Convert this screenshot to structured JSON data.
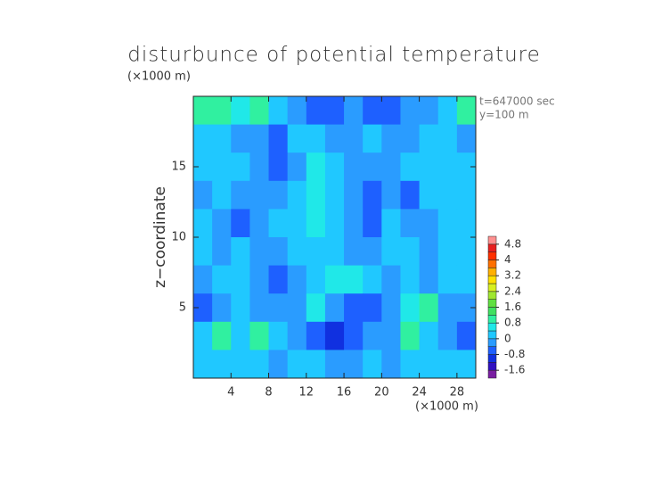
{
  "chart_data": {
    "type": "heatmap",
    "title": "disturbunce of potential temperature",
    "y_unit": "(×1000 m)",
    "x_unit": "(×1000 m)",
    "ylabel": "z−coordinate",
    "annotations": [
      "t=647000 sec",
      "y=100 m"
    ],
    "x": [
      1,
      3,
      5,
      7,
      9,
      11,
      13,
      15,
      17,
      19,
      21,
      23,
      25,
      27,
      29
    ],
    "y": [
      19,
      17,
      15,
      13,
      11,
      9,
      7,
      5,
      3,
      1
    ],
    "z": [
      [
        0.8,
        0.8,
        0.4,
        0.8,
        0,
        -0.4,
        -0.8,
        -0.8,
        -0.4,
        -0.8,
        -0.8,
        -0.4,
        -0.4,
        0,
        0.8
      ],
      [
        0,
        0,
        -0.4,
        -0.4,
        -0.8,
        0,
        0,
        -0.4,
        -0.4,
        0,
        -0.4,
        -0.4,
        0,
        0,
        -0.4
      ],
      [
        0,
        0,
        0,
        -0.4,
        -0.8,
        -0.4,
        0.4,
        0,
        -0.4,
        -0.4,
        -0.4,
        0,
        0,
        0,
        0
      ],
      [
        -0.4,
        0,
        -0.4,
        -0.4,
        -0.4,
        0,
        0.4,
        0,
        -0.4,
        -0.8,
        -0.4,
        -0.8,
        0,
        0,
        0
      ],
      [
        0,
        -0.4,
        -0.8,
        -0.4,
        0,
        0,
        0.4,
        0,
        -0.4,
        -0.8,
        0,
        -0.4,
        -0.4,
        0,
        0
      ],
      [
        0,
        -0.4,
        0,
        -0.4,
        -0.4,
        0,
        0,
        0,
        -0.4,
        -0.4,
        0,
        0,
        -0.4,
        0,
        0
      ],
      [
        -0.4,
        0,
        0,
        -0.4,
        -0.8,
        -0.4,
        0,
        0.4,
        0.4,
        0,
        -0.4,
        0,
        -0.4,
        0,
        0
      ],
      [
        -0.8,
        -0.4,
        0,
        -0.4,
        -0.4,
        -0.4,
        0.4,
        -0.4,
        -0.8,
        -0.8,
        -0.4,
        0.4,
        0.8,
        -0.4,
        -0.4
      ],
      [
        0,
        0.8,
        0,
        0.8,
        0,
        -0.4,
        -0.8,
        -1.2,
        -0.8,
        -0.4,
        -0.4,
        0.8,
        0,
        -0.4,
        -0.8
      ],
      [
        0,
        0,
        0,
        0,
        -0.4,
        0,
        0,
        -0.4,
        -0.4,
        0,
        -0.4,
        0,
        0,
        0,
        0
      ]
    ],
    "xlim": [
      0,
      30
    ],
    "ylim": [
      0,
      20
    ],
    "xticks": [
      4,
      8,
      12,
      16,
      20,
      24,
      28
    ],
    "yticks": [
      5,
      10,
      15
    ],
    "colorbar": {
      "boundaries": [
        -2,
        -1.6,
        -1.2,
        -0.8,
        -0.4,
        0,
        0.4,
        0.8,
        1.2,
        1.6,
        2,
        2.4,
        2.8,
        3.2,
        3.6,
        4,
        4.4,
        4.8,
        5.2
      ],
      "colors": [
        "#7a1fa2",
        "#3010c0",
        "#1030e0",
        "#1e60ff",
        "#2a9cff",
        "#20c8ff",
        "#20e8e8",
        "#30f0a0",
        "#40e060",
        "#60e040",
        "#a0e830",
        "#d8f020",
        "#ffe000",
        "#ffb000",
        "#ff7000",
        "#ff3000",
        "#e82020",
        "#ff9090"
      ],
      "lim": [
        -2,
        5.2
      ],
      "ticks": [
        -1.6,
        -0.8,
        0,
        0.8,
        1.6,
        2.4,
        3.2,
        4,
        4.8
      ]
    }
  }
}
